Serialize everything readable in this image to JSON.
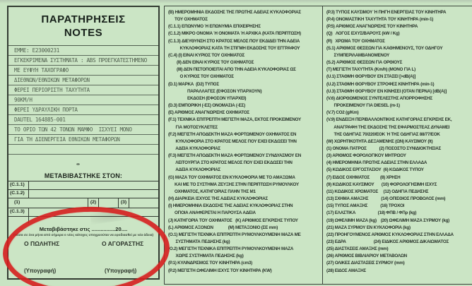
{
  "colors": {
    "paper_green": "#c9e4c3",
    "annotation_red": "#d71f1f"
  },
  "notes_panel": {
    "title_line1": "ΠΑΡΑΤΗΡΗΣΕΙΣ",
    "title_line2": "NOTES",
    "typed_lines": [
      "ΕΜΜΕ: Ε23000231",
      "ΕΓΚΕΚΡΙΜΕΝΑ ΣΥΣΤΗΜΑΤΑ : ABS ΠΡΟΕΓΚΑΤΕΣΤΗΜΕΝΟ",
      "ΜΕ ΕΥΦΥΗ ΤΑΧΟΓΡΑΦΟ",
      "ΔΙΕΘΝΩΝ/ΕΘΝΙΚΩΝ ΜΕΤΑΦΟΡΩΝ",
      "ΦΕΡΕΙ ΠΕΡΙΟΡΙΣΤΗ ΤΑΧΥΤΗΤΑ",
      "90KM/H",
      "ΦΕΡΕΙ ΥΔΡΑΥΛΙΚΗ ΠΟΡΤΑ",
      "DAUTEL 164885-001",
      "ΤΟ ΟΡΙΟ ΤΩΝ 42 ΤΟΝΩΝ ΜΑΜΦΟ  ΙΣΧΥΕΙ ΜΟΝΟ",
      "ΓΙΑ ΤΗ ΔΙΕΝΕΡΓΕΙΑ ΕΘΝΙΚΩΝ ΜΕΤΑΦΟΡΩΝ",
      "",
      ""
    ],
    "transfer_heading": "ΜΕΤΑΒΙΒΑΣΤΗΚΕ ΣΤΟΝ:",
    "table": {
      "row1_label": "(C.1.1)",
      "row2_label": "(C.1.2)",
      "cell_1": "(1)",
      "cell_2": "(2)",
      "cell_3": "(3)",
      "row4_label": "(C.1.3)"
    },
    "transfer": {
      "date_line": "Μεταβιβάστηκε στις ................20....",
      "note_line": "(Μέσα σε ένα μήνα από σήμερα ο νέος κάτοχος υποχρεούται να εφοδιασθεί με νέα άδεια)",
      "seller_label": "Ο ΠΩΛΗΤΗΣ",
      "buyer_label": "Ο ΑΓΟΡΑΣΤΗΣ",
      "signature_left": "(Υπογραφή)",
      "signature_right": "(Υπογραφή)"
    }
  },
  "legend_middle": {
    "lines": [
      "(Β) ΗΜΕΡΟΜΗΝΙΑ ΕΚΔΟΣΗΣ ΤΗΣ ΠΡΩΤΗΣ ΑΔΕΙΑΣ ΚΥΚΛΟΦΟΡΙΑΣ",
      "      ΤΟΥ ΟΧΗΜΑΤΟΣ",
      "(C.1.1) ΕΠΩΝΥΜΟ Ή ΕΠΩΝΥΜΙΑ ΕΠΙΧΕΙΡΗΣΗΣ",
      "(C.1.2) ΜΙΚΡΟ ΟΝΟΜΑ Ή ΟΝΟΜΑΤΑ Ή ΑΡΧΙΚΑ (ΚΑΤΑ ΠΕΡΙΠΤΩΣΗ)",
      "(C.1.3) ΔΙΕΥΘΥΝΣΗ ΣΤΟ ΚΡΑΤΟΣ ΜΕΛΟΣ ΠΟΥ ΕΚΔΙΔΕΙ ΤΗΝ ΑΔΕΙΑ",
      "           ΚΥΚΛΟΦΟΡΙΑΣ ΚΑΤΑ ΤΗ ΣΤΙΓΜΗ ΕΚΔΟΣΗΣ ΤΟΥ ΕΓΓΡΑΦΟΥ",
      "(C.4) (Ι) ΕΙΝΑΙ ΚΥΡΙΟΣ ΤΟΥ ΟΧΗΜΑΤΟΣ",
      "        (ΙΙ) ΔΕΝ ΕΙΝΑΙ ΚΥΡΙΟΣ ΤΟΥ ΟΧΗΜΑΤΟΣ",
      "        (ΙΙΙ) ΔΕΝ ΠΙΣΤΟΠΟΙΕΙΤΑΙ ΑΠΟ ΤΗΝ ΑΔΕΙΑ ΚΥΚΛΟΦΟΡΙΑΣ ΩΣ",
      "           Ο ΚΥΡΙΟΣ ΤΟΥ ΟΧΗΜΑΤΟΣ",
      "(D.1) ΜΑΡΚΑ  (D2) ΤΥΠΟΣ",
      "                  ΠΑΡΑΛΛΑΓΕΣ (ΕΦΟΣΟΝ ΥΠΑΡΧΟΥΝ)",
      "                  ΕΚΔΟΣΗ (ΕΦΟΣΟΝ ΥΠΑΡΧΕΙ)",
      "(D.3) ΕΜΠΟΡΙΚΗ (-ΕΣ) ΟΝΟΜΑΣΙΑ (-ΕΣ)",
      "(Ε) ΑΡΙΘΜΟΣ ΑΝΑΓΝΩΡΙΣΗΣ ΟΧΗΜΑΤΟΣ",
      "(F.1) ΤΕΧΝΙΚΑ ΕΠΙΤΡΕΠΤΗ ΜΕΓΙΣΤΗ ΜΑΖΑ, ΕΚΤΟΣ ΠΡΟΚΕΙΜΕΝΟΥ",
      "       ΓΙΑ ΜΟΤΟΣΥΚΛΕΤΕΣ",
      "(F.2) ΜΕΓΙΣΤΗ ΑΠΟΔΕΚΤΗ ΜΑΖΑ ΦΟΡΤΩΜΕΝΟΥ ΟΧΗΜΑΤΟΣ ΕΝ",
      "       ΚΥΚΛΟΦΟΡΙΑ ΣΤΟ ΚΡΑΤΟΣ ΜΕΛΟΣ ΠΟΥ ΕΧΕΙ ΕΚΔΩΣΕΙ ΤΗΝ",
      "       ΑΔΕΙΑ ΚΥΚΛΟΦΟΡΙΑΣ",
      "(F.3) ΜΕΓΙΣΤΗ ΑΠΟΔΕΚΤΗ ΜΑΖΑ ΦΟΡΤΩΜΕΝΟΥ ΣΥΝΔΥΑΣΜΟΥ ΕΝ",
      "       ΛΕΙΤΟΥΡΓΙΑ ΣΤΟ ΚΡΑΤΟΣ ΜΕΛΟΣ ΠΟΥ ΕΧΕΙ ΕΚΔΩΣΕΙ ΤΗΝ",
      "       ΑΔΕΙΑ ΚΥΚΛΟΦΟΡΙΑΣ",
      "(G) ΜΑΖΑ ΤΟΥ ΟΧΗΜΑΤΟΣ ΕΝ ΚΥΚΛΟΦΟΡΙΑ ΜΕ ΤΟ ΑΜΑΞΩΜΑ",
      "      ΚΑΙ ΜΕ ΤΟ ΣΥΣΤΗΜΑ ΖΕΥΞΗΣ ΣΤΗΝ ΠΕΡΙΠΤΩΣΗ ΡΥΜΟΥΛΚΟΥ",
      "      ΟΧΗΜΑΤΟΣ, ΚΑΤΗΓΟΡΙΑΣ ΠΛΗΝ ΤΗΣ Μ1",
      "(Η) ΔΙΑΡΚΕΙΑ ΙΣΧΥΟΣ ΤΗΣ ΑΔΕΙΑΣ ΚΥΚΛΟΦΟΡΙΑΣ",
      "(Ι) ΗΜΕΡΟΜΗΝΙΑ ΕΚΔΟΣΗΣ ΤΗΣ ΑΔΕΙΑΣ ΚΥΚΛΟΦΟΡΙΑΣ ΣΤΗΝ",
      "      ΟΠΟΙΑ ΑΝΑΦΕΡΕΤΑΙ Η ΠΑΡΟΥΣΑ ΑΔΕΙΑ",
      "(J) ΚΑΤΗΓΟΡΙΑ ΤΟΥ ΟΧΗΜΑΤΟΣ   (Κ) ΑΡΙΘΜΟΣ ΕΓΚΡΙΣΗΣ ΤΥΠΟΥ",
      "(L) ΑΡΙΘΜΟΣ ΑΞΟΝΩΝ              (Μ) ΜΕΤΑΞΟΝΙΟ (ΣΕ mm)",
      "(O.1) ΜΕΓΙΣΤΗ ΤΕΧΝΙΚΑ ΕΠΙΤΡΕΠΤΗ ΡΥΜΟΥΛΚΟΥΜΕΝΗ ΜΑΖΑ ΜΕ",
      "       ΣΥΣΤΗΜΑΤΑ ΠΕΔΗΣΗΣ (kg)",
      "(O.2) ΜΕΓΙΣΤΗ ΤΕΧΝΙΚΑ ΕΠΙΤΡΕΠΤΗ ΡΥΜΟΥΛΚΟΥΜΕΝΗ ΜΑΖΑ",
      "       ΧΩΡΙΣ ΣΥΣΤΗΜΑΤΑ ΠΕΔΗΣΗΣ (kg)",
      "(P.1) ΚΥΛΙΝΔΡΙΣΜΟΣ ΤΟΥ ΚΙΝΗΤΗΡΑ (cm3)",
      "(P.2) ΜΕΓΙΣΤΗ ΩΦΕΛΙΜΗ ΙΣΧΥΣ ΤΟΥ ΚΙΝΗΤΗΡΑ (KW)"
    ]
  },
  "legend_right": {
    "lines": [
      "(P.3) ΤΥΠΟΣ ΚΑΥΣΙΜΟΥ Ή ΠΗΓΗ ΕΝΕΡΓΕΙΑΣ ΤΟΥ ΚΙΝΗΤΗΡΑ",
      "(P.4) ΟΝΟΜΑΣΤΙΚΗ ΤΑΧΥΤΗΤΑ ΤΟΥ ΚΙΝΗΤΗΡΑ (min-1)",
      "(P.5) ΑΡΙΘΜΟΣ ΑΝΑΓΝΩΡΙΣΗΣ ΤΟΥ ΚΙΝΗΤΗΡΑ",
      "(Q)   ΛΟΓΟΣ ΙΣΧΥΣ/ΒΑΡΟΥΣ (kW / Kg)",
      "(R)   ΧΡΩΜΑ ΤΟΥ ΟΧΗΜΑΤΟΣ",
      "(S.1) ΑΡΙΘΜΟΣ ΘΕΣΕΩΝ ΓΙΑ ΚΑΘΗΜΕΝΟΥΣ, ΤΟΥ ΟΔΗΓΟΥ",
      "       ΣΥΜΠΕΡΙΛΑΜΒΑΝΟΜΕΝΟΥ",
      "(S.2) ΑΡΙΘΜΟΣ ΘΕΣΕΩΝ ΓΙΑ ΟΡΘΙΟΥΣ",
      "(Τ) ΜΕΓΙΣΤΗ ΤΑΧΥΤΗΤΑ (Km/h) (ΜΟΝΟ ΓΙΑ L)",
      "(U.1) ΣΤΑΘΜΗ ΘΟΡΥΒΟΥ ΕΝ ΣΤΑΣΕΙ [>dB(A)]",
      "(U.2) ΣΤΑΘΜΗ ΘΟΡΥΒΟΥ ΣΤΡΟΦΕΣ ΚΙΝΗΤΗΡΑ (min-1)",
      "(U.3) ΣΤΑΘΜΗ ΘΟΡΥΒΟΥ ΕΝ ΚΙΝΗΣΕΙ (ΟΤΑΝ ΠΕΡΝΑ) [dB(A)]",
      "(V.6) ΔΙΟΡΘΩΜΕΝΟΣ ΣΥΝΤΕΛΕΣΤΗΣ ΑΠΟΡΡΟΦΗΣΗΣ",
      "       ΠΡΟΚΕΙΜΕΝΟΥ ΓΙΑ DIESEL (m-1)",
      "(V.7) CO2 (g/Km)",
      "(V.9) ΕΝΔΕΙΞΗ ΠΕΡΙΒΑΛΛΟΝΤΙΚΗΣ ΚΑΤΗΓΟΡΙΑΣ ΕΓΚΡΙΣΗΣ ΕΚ,",
      "       ΑΝΑΓΡΑΦΗ ΤΗΣ ΕΚΔΟΣΗΣ ΤΗΣ ΕΦΑΡΜΟΣΤΕΑΣ ΔΥΝΑΜΕΙ",
      "       ΤΗΣ ΟΔΗΓΙΑΣ 70/220/ΕΟΚ Ή ΤΗΣ ΟΔΗΓΙΑΣ 88/77/ΕΟΚ",
      "(W) ΧΩΡΗΤΙΚΟΤΗΤΑ ΔΕΞΑΜΕΝΗΣ (ΩΝ) ΚΑΥΣΙΜΟΥ (lt)",
      "(1) ΟΝΟΜΑ ΠΑΤΡΟΣ            (2) ΠΟΣΟΣΤΟ ΣΥΝΙΔΙΟΚΤΗΣΙΑΣ",
      "(3) ΑΡΙΘΜΟΣ ΦΟΡΟΛΟΓΙΚΟΥ ΜΗΤΡΩΟΥ",
      "(4) ΗΜΕΡΟΜΗΝΙΑ ΠΡΩΤΗΣ ΑΔΕΙΑΣ ΣΤΗΝ ΕΛΛΑΔΑ",
      "(5) ΚΩΔΙΚΟΣ ΕΡΓΟΣΤΑΣΙΟΥ  (6) ΚΩΔΙΚΟΣ ΤΥΠΟΥ",
      "(7) ΕΙΔΟΣ ΟΧΗΜΑΤΟΣ          (8) ΧΡΗΣΗ",
      "(9) ΚΩΔΙΚΟΣ ΚΑΥΣΙΜΟΥ       (10) ΦΟΡΟΛΟΓΗΣΙΜΗ ΙΣΧΥΣ",
      "(11) ΚΩΔΙΚΟΣ ΧΡΩΜΑΤΟΣ     (12) ΟΔΗΓΙΑ ΠΕΔΗΣΗΣ",
      "(13) ΣΧΗΜΑ ΑΜΑΞΗΣ            (14) ΟΠΙΣΘΙΟΣ ΠΡΟΒΟΛΟΣ (mm)",
      "(15) ΤΥΠΟΣ ΑΜΑΞΗΣ            (16) ΤΡΟΧΟΙ",
      "(17) ΕΛΑΣΤΙΚΑ                     (18) ΦΠΒ / ΦΠρ (kg)",
      "(19) ΩΦΕΛΙΜΗ ΜΑΖΑ (kg)    (20) ΩΦΕΛΙΜΗ ΜΑΖΑ ΣΥΡΜΟΥ (kg)",
      "(21) ΜΑΖΑ ΣΥΡΜΟΥ ΕΝ ΚΥΚΛΟΦΟΡΙΑ (kg)",
      "(22) ΠΡΟΗΓΟΥΜΕΝΟΣ ΑΡΙΘΜΟΣ ΚΥΚΛΟΦΟΡΙΑΣ ΣΤΗΝ ΕΛΛΑΔΑ",
      "(23) ΕΔΡΑ                          (24) ΕΙΔΙΚΟΣ ΑΡΙΘΜΟΣ ΔΙΚΑΙΩΜΑΤΟΣ",
      "(25) ΔΙΑΣΤΑΣΕΙΣ ΑΜΑΞΗΣ (mm)",
      "(26) ΑΡΙΘΜΟΣ ΒΙΒΛΙΑΡΙΟΥ ΜΕΤΑΒΟΛΩΝ",
      "(27) ΟΛΙΚΕΣ ΔΙΑΣΤΑΣΕΙΣ ΣΥΡΜΟΥ (mm)",
      "(28) ΕΙΔΟΣ ΑΜΑΞΗΣ"
    ]
  }
}
